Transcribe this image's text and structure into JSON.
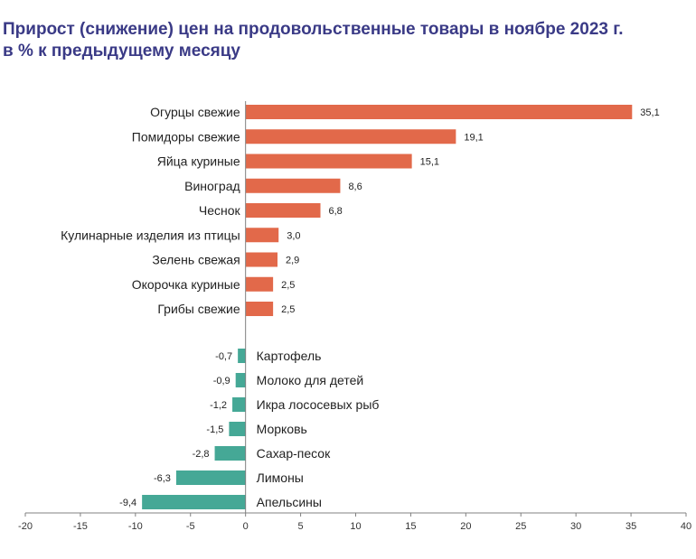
{
  "header": {
    "title": "Прирост (снижение) цен на продовольственные товары в ноябре 2023 г.",
    "subtitle": "в % к предыдущему месяцу"
  },
  "colors": {
    "positive": "#E2694A",
    "negative": "#45A896",
    "title": "#3A3A86",
    "axis": "#808080"
  },
  "chart_data": {
    "type": "bar",
    "orientation": "horizontal",
    "title": "Прирост (снижение) цен на продовольственные товары в ноябре 2023 г.",
    "subtitle": "в % к предыдущему месяцу",
    "xlim": [
      -20,
      40
    ],
    "xticks": [
      -20,
      -15,
      -10,
      -5,
      0,
      5,
      10,
      15,
      20,
      25,
      30,
      35,
      40
    ],
    "grid": false,
    "legend": "none",
    "items": [
      {
        "category": "Огурцы свежие",
        "value": 35.1,
        "label": "35,1"
      },
      {
        "category": "Помидоры свежие",
        "value": 19.1,
        "label": "19,1"
      },
      {
        "category": "Яйца куриные",
        "value": 15.1,
        "label": "15,1"
      },
      {
        "category": "Виноград",
        "value": 8.6,
        "label": "8,6"
      },
      {
        "category": "Чеснок",
        "value": 6.8,
        "label": "6,8"
      },
      {
        "category": "Кулинарные изделия из птицы",
        "value": 3.0,
        "label": "3,0"
      },
      {
        "category": "Зелень свежая",
        "value": 2.9,
        "label": "2,9"
      },
      {
        "category": "Окорочка куриные",
        "value": 2.5,
        "label": "2,5"
      },
      {
        "category": "Грибы свежие",
        "value": 2.5,
        "label": "2,5"
      },
      {
        "category": "Картофель",
        "value": -0.7,
        "label": "-0,7"
      },
      {
        "category": "Молоко для детей",
        "value": -0.9,
        "label": "-0,9"
      },
      {
        "category": "Икра лососевых рыб",
        "value": -1.2,
        "label": "-1,2"
      },
      {
        "category": "Морковь",
        "value": -1.5,
        "label": "-1,5"
      },
      {
        "category": "Сахар-песок",
        "value": -2.8,
        "label": "-2,8"
      },
      {
        "category": "Лимоны",
        "value": -6.3,
        "label": "-6,3"
      },
      {
        "category": "Апельсины",
        "value": -9.4,
        "label": "-9,4"
      }
    ]
  }
}
